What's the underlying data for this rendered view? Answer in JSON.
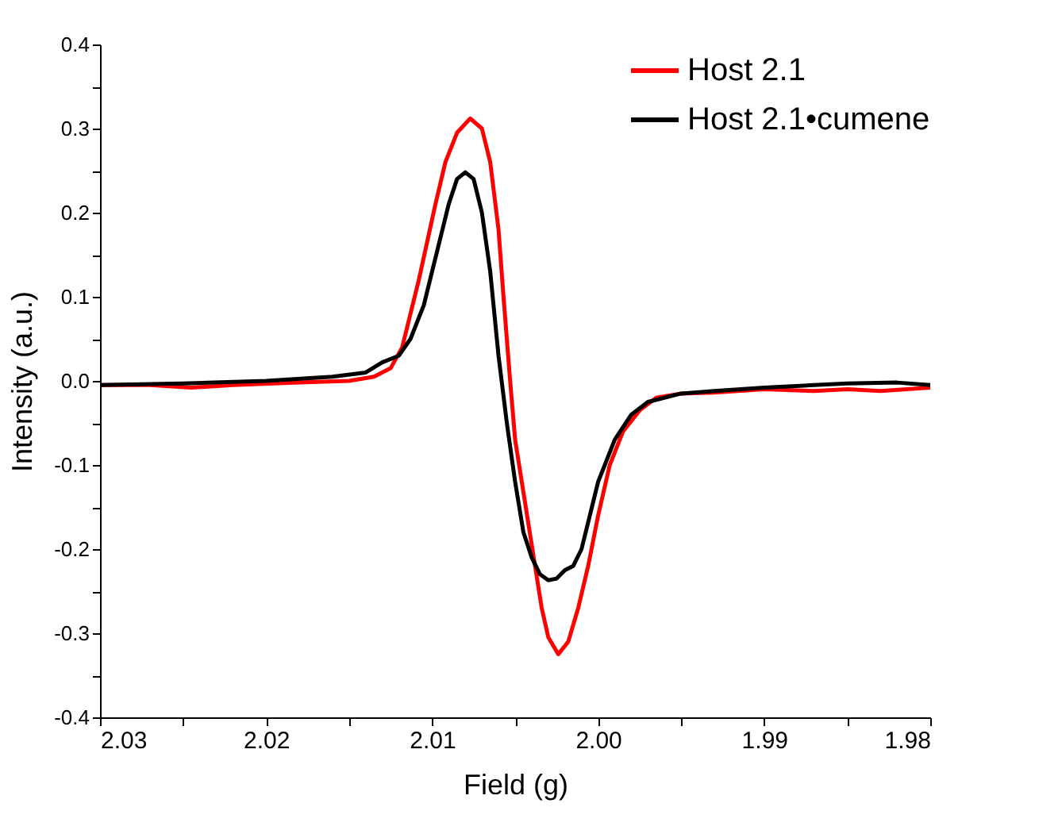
{
  "chart_data": {
    "type": "line",
    "xlabel": "Field (g)",
    "ylabel": "Intensity (a.u.)",
    "xlim": [
      2.03,
      1.98
    ],
    "ylim": [
      -0.4,
      0.4
    ],
    "xticks": [
      2.03,
      {
        "value": 2.025,
        "label": null
      },
      2.02,
      {
        "value": 2.015,
        "label": null
      },
      2.01,
      {
        "value": 2.005,
        "label": null
      },
      {
        "value": 2.0,
        "label": "2.00"
      },
      {
        "value": 1.995,
        "label": null
      },
      1.99,
      {
        "value": 1.985,
        "label": null
      },
      1.98
    ],
    "yticks": [
      -0.4,
      {
        "value": -0.35,
        "label": null
      },
      -0.3,
      {
        "value": -0.25,
        "label": null
      },
      -0.2,
      {
        "value": -0.15,
        "label": null
      },
      -0.1,
      {
        "value": -0.05,
        "label": null
      },
      {
        "value": 0,
        "label": "0.0"
      },
      {
        "value": 0.05,
        "label": null
      },
      0.1,
      {
        "value": 0.15,
        "label": null
      },
      0.2,
      {
        "value": 0.25,
        "label": null
      },
      0.3,
      {
        "value": 0.35,
        "label": null
      },
      0.4
    ],
    "grid": false,
    "legend": "top right",
    "marker": "none",
    "line_style": "solid",
    "series": [
      {
        "name": "Host 2.1",
        "color": "#ff0000",
        "x": [
          2.03,
          2.027,
          2.0245,
          2.022,
          2.018,
          2.015,
          2.0135,
          2.0125,
          2.0118,
          2.0113,
          2.0108,
          2.0103,
          2.0098,
          2.0092,
          2.0085,
          2.0077,
          2.007,
          2.0065,
          2.006,
          2.0057,
          2.0053,
          2.005,
          2.0046,
          2.0042,
          2.0038,
          2.0034,
          2.003,
          2.0024,
          2.0018,
          2.0012,
          2.0006,
          2.0,
          1.9993,
          1.9985,
          1.9975,
          1.9965,
          1.995,
          1.993,
          1.99,
          1.987,
          1.985,
          1.983,
          1.98
        ],
        "values": [
          -0.005,
          -0.005,
          -0.008,
          -0.005,
          -0.002,
          0.0,
          0.005,
          0.015,
          0.04,
          0.08,
          0.12,
          0.165,
          0.21,
          0.26,
          0.295,
          0.312,
          0.3,
          0.26,
          0.18,
          0.1,
          0.0,
          -0.07,
          -0.12,
          -0.17,
          -0.22,
          -0.27,
          -0.305,
          -0.325,
          -0.31,
          -0.27,
          -0.22,
          -0.16,
          -0.1,
          -0.06,
          -0.035,
          -0.02,
          -0.015,
          -0.014,
          -0.01,
          -0.012,
          -0.01,
          -0.012,
          -0.008
        ]
      },
      {
        "name": "Host 2.1•cumene",
        "color": "#000000",
        "x": [
          2.03,
          2.025,
          2.02,
          2.016,
          2.014,
          2.013,
          2.012,
          2.0113,
          2.0105,
          2.01,
          2.0095,
          2.009,
          2.0085,
          2.008,
          2.0075,
          2.007,
          2.0065,
          2.006,
          2.0055,
          2.005,
          2.0045,
          2.004,
          2.0035,
          2.003,
          2.0025,
          2.002,
          2.0015,
          2.001,
          2.0005,
          2.0,
          1.999,
          1.998,
          1.997,
          1.995,
          1.993,
          1.99,
          1.987,
          1.985,
          1.982,
          1.98
        ],
        "values": [
          -0.005,
          -0.003,
          0.0,
          0.005,
          0.01,
          0.022,
          0.03,
          0.05,
          0.09,
          0.13,
          0.17,
          0.21,
          0.24,
          0.248,
          0.24,
          0.2,
          0.13,
          0.03,
          -0.05,
          -0.12,
          -0.18,
          -0.21,
          -0.23,
          -0.237,
          -0.235,
          -0.225,
          -0.22,
          -0.2,
          -0.16,
          -0.12,
          -0.07,
          -0.04,
          -0.025,
          -0.015,
          -0.012,
          -0.008,
          -0.005,
          -0.003,
          -0.002,
          -0.005
        ]
      }
    ]
  }
}
